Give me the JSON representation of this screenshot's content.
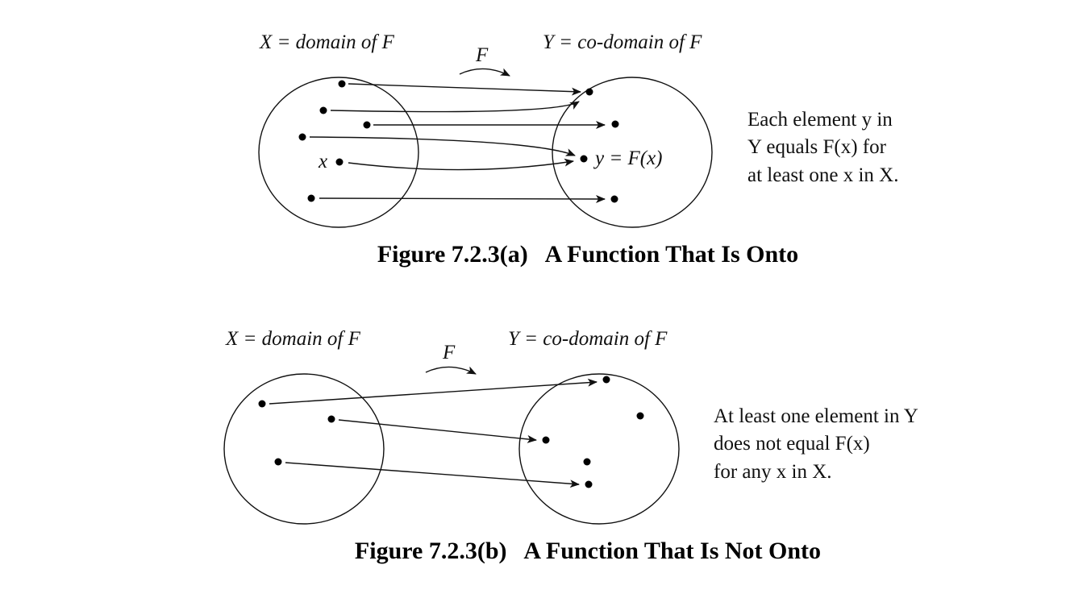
{
  "figures": [
    {
      "domain_label": "X = domain of F",
      "codomain_label": "Y = co-domain of F",
      "map_label": "F",
      "element_label": "x",
      "image_label": "y = F(x)",
      "description": [
        "Each element y in",
        "Y equals F(x) for",
        "at least one x in X."
      ],
      "caption": "Figure 7.2.3(a)   A Function That Is Onto"
    },
    {
      "domain_label": "X = domain of F",
      "codomain_label": "Y = co-domain of F",
      "map_label": "F",
      "description": [
        "At least one element in Y",
        "does not equal F(x)",
        "for any x in X."
      ],
      "caption": "Figure 7.2.3(b)   A Function That Is Not Onto"
    }
  ]
}
